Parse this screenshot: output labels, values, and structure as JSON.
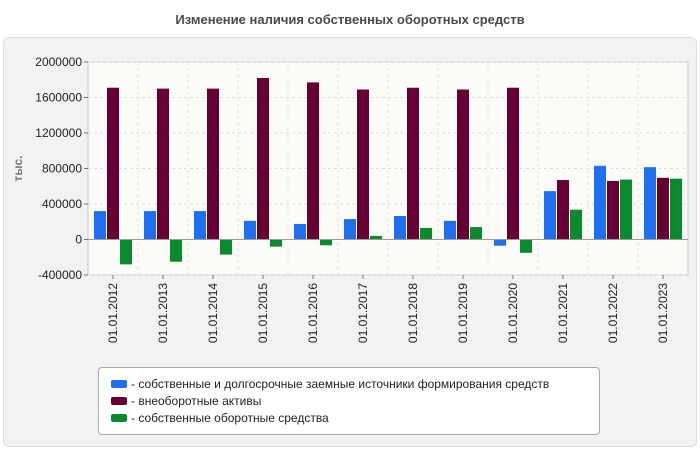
{
  "chart_data": {
    "type": "bar",
    "title": "Изменение наличия собственных оборотных средств",
    "ylabel": "тыс.",
    "ylim": [
      -400000,
      2000000
    ],
    "yticks": [
      "2000000",
      "1600000",
      "1200000",
      "800000",
      "400000",
      "0",
      "-400000"
    ],
    "categories": [
      "01.01.2012",
      "01.01.2013",
      "01.01.2014",
      "01.01.2015",
      "01.01.2016",
      "01.01.2017",
      "01.01.2018",
      "01.01.2019",
      "01.01.2020",
      "01.01.2021",
      "01.01.2022",
      "01.01.2023"
    ],
    "series": [
      {
        "name": "- собственные и долгосрочные заемные источники формирования средств",
        "color": "#1f6ff2",
        "values": [
          320000,
          320000,
          320000,
          210000,
          175000,
          230000,
          265000,
          210000,
          -70000,
          545000,
          830000,
          815000
        ]
      },
      {
        "name": "- внеоборотные активы",
        "color": "#660033",
        "values": [
          1710000,
          1700000,
          1700000,
          1820000,
          1770000,
          1690000,
          1710000,
          1690000,
          1710000,
          670000,
          660000,
          695000
        ]
      },
      {
        "name": "- собственные оборотные средства",
        "color": "#0a8a2e",
        "values": [
          -280000,
          -250000,
          -170000,
          -80000,
          -65000,
          40000,
          130000,
          140000,
          -150000,
          335000,
          675000,
          685000
        ]
      }
    ],
    "grid": true,
    "legend_position": "bottom"
  }
}
